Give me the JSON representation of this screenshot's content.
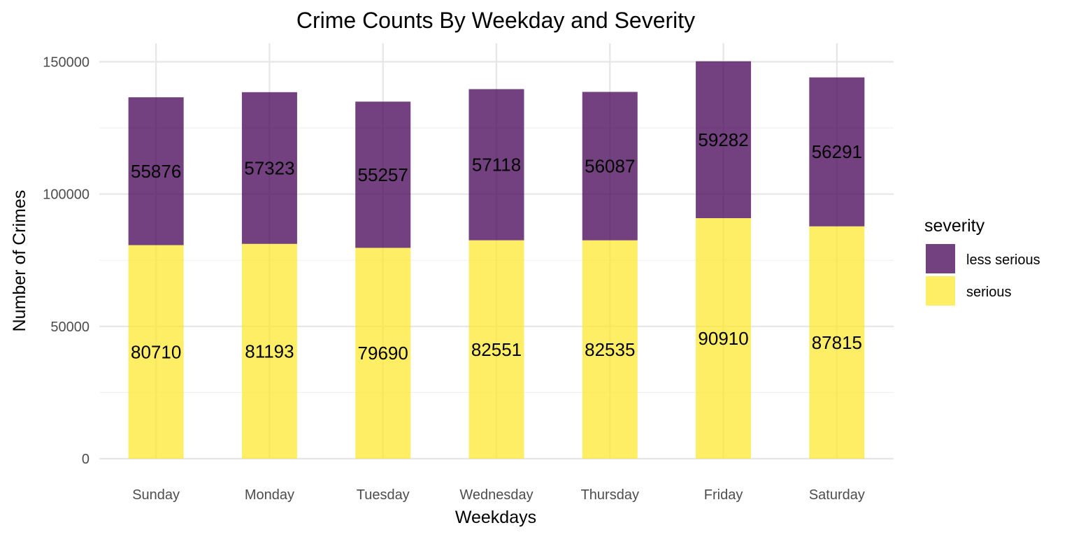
{
  "chart_data": {
    "type": "bar",
    "stacked": true,
    "title": "Crime Counts By Weekday and Severity",
    "xlabel": "Weekdays",
    "ylabel": "Number of Crimes",
    "categories": [
      "Sunday",
      "Monday",
      "Tuesday",
      "Wednesday",
      "Thursday",
      "Friday",
      "Saturday"
    ],
    "series": [
      {
        "name": "serious",
        "color": "#FDE725",
        "values": [
          80710,
          81193,
          79690,
          82551,
          82535,
          90910,
          87815
        ]
      },
      {
        "name": "less serious",
        "color": "#440154",
        "values": [
          55876,
          57323,
          55257,
          57118,
          56087,
          59282,
          56291
        ]
      }
    ],
    "ylim": [
      0,
      160000
    ],
    "yticks": [
      0,
      50000,
      100000,
      150000
    ],
    "ytick_labels": [
      "0",
      "50000",
      "100000",
      "150000"
    ],
    "grid": true,
    "legend": {
      "title": "severity",
      "position": "right",
      "entries": [
        "less serious",
        "serious"
      ]
    }
  }
}
